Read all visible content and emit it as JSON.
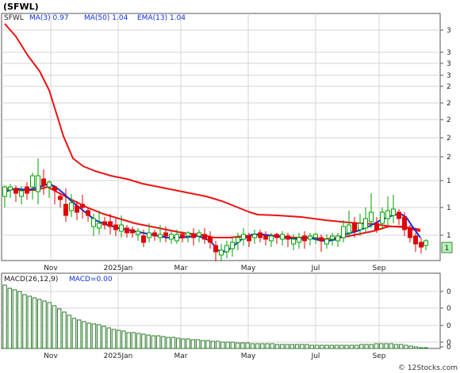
{
  "title": "(SFWL)",
  "colors": {
    "up": "#00a000",
    "down": "#e00000",
    "ma_fast": "#1030e0",
    "ma_slow": "#ee1111",
    "macd_bar": "#2a7a2a",
    "grid": "#d4d4d4",
    "axis": "#555555",
    "last_price_box": "#b8f0b8"
  },
  "chart_data": [
    {
      "type": "candlestick",
      "legend": {
        "ticker": "SFWL",
        "ma3_label": "MA(3)",
        "ma3_value": "0.97",
        "ma50_label": "MA(50)",
        "ma50_value": "1.04",
        "ema13_label": "EMA(13)",
        "ema13_value": "1.04"
      },
      "y_tick_labels": [
        "3",
        "3",
        "3",
        "3",
        "2",
        "2",
        "2",
        "2",
        "2",
        "1",
        "1",
        "1"
      ],
      "last_price_label": "1",
      "x_tick_labels": [
        "Nov",
        "2025Jan",
        "Mar",
        "May",
        "Jul",
        "Sep"
      ],
      "ylim": [
        0.82,
        3.12
      ],
      "grid": true
    },
    {
      "type": "bar",
      "legend": {
        "label": "MACD(26,12,9)",
        "value_label": "MACD=0.00"
      },
      "y_tick_labels": [
        "0",
        "0",
        "0",
        "0",
        "0"
      ],
      "x_tick_labels": [
        "Nov",
        "2025Jan",
        "Mar",
        "May",
        "Jul",
        "Sep"
      ],
      "values": [
        0.4,
        0.38,
        0.37,
        0.36,
        0.34,
        0.33,
        0.32,
        0.31,
        0.3,
        0.29,
        0.27,
        0.25,
        0.23,
        0.21,
        0.19,
        0.18,
        0.17,
        0.16,
        0.155,
        0.15,
        0.14,
        0.13,
        0.12,
        0.115,
        0.11,
        0.1,
        0.1,
        0.095,
        0.09,
        0.085,
        0.08,
        0.08,
        0.075,
        0.07,
        0.07,
        0.065,
        0.06,
        0.06,
        0.055,
        0.055,
        0.05,
        0.05,
        0.045,
        0.045,
        0.04,
        0.04,
        0.04,
        0.035,
        0.035,
        0.035,
        0.03,
        0.03,
        0.03,
        0.03,
        0.03,
        0.025,
        0.025,
        0.025,
        0.025,
        0.025,
        0.025,
        0.025,
        0.02,
        0.02,
        0.02,
        0.02,
        0.02,
        0.02,
        0.02,
        0.02,
        0.02,
        0.02,
        0.025,
        0.025,
        0.025,
        0.03,
        0.03,
        0.03,
        0.03,
        0.025,
        0.025,
        0.02,
        0.015,
        0.01,
        0.005,
        0.003
      ],
      "grid": true
    }
  ],
  "credit": "© 12Stocks.com"
}
